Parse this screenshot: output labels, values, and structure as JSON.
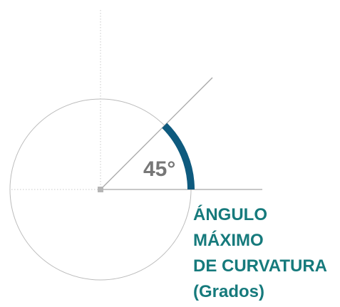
{
  "angle": {
    "degrees": 45,
    "label": "45°"
  },
  "caption": {
    "lines": [
      "ÁNGULO",
      "MÁXIMO",
      "DE CURVATURA",
      "(Grados)"
    ]
  },
  "colors": {
    "arc": "#0e5a7e",
    "caption": "#167a7c",
    "angle_label": "#777777",
    "circle": "#bbbbbb",
    "rays": "#a6a6a6",
    "guides": "#c8c8c8",
    "center_marker": "#b5b5b5"
  }
}
